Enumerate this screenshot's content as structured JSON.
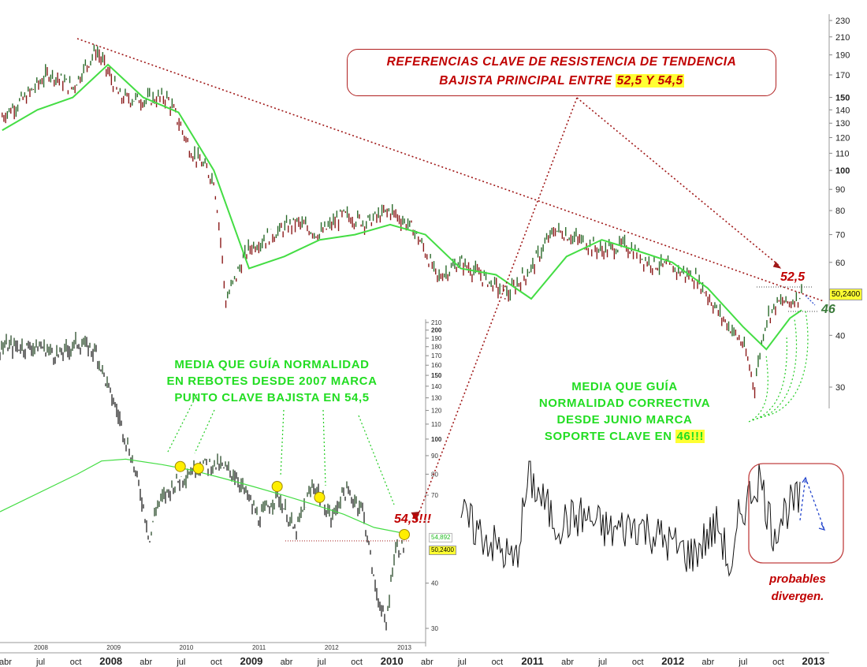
{
  "annotations": {
    "resistance_line1": "REFERENCIAS CLAVE DE RESISTENCIA DE TENDENCIA",
    "resistance_line2_prefix": "BAJISTA PRINCIPAL ENTRE ",
    "resistance_line2_highlight": "52,5 Y 54,5",
    "green_left": [
      "MEDIA QUE GUÍA NORMALIDAD",
      "EN REBOTES DESDE 2007 MARCA",
      "PUNTO CLAVE BAJISTA EN 54,5"
    ],
    "green_right": [
      "MEDIA QUE GUÍA",
      "NORMALIDAD CORRECTIVA",
      "DESDE JUNIO MARCA"
    ],
    "green_right_last_prefix": "SOPORTE CLAVE EN ",
    "green_right_last_highlight": "46!!!",
    "divergence": [
      "probables",
      "divergen."
    ],
    "level_525": "52,5",
    "level_545": "54,5!!!",
    "level_46": "46",
    "price_main": "50,2400",
    "price_inset": "50,2400",
    "price_inset_ma": "54,892"
  },
  "colors": {
    "price_up": "#2a6a2a",
    "price_down": "#8b1a1a",
    "moving_average": "#44dd44",
    "trendline": "#a01818",
    "annotation_red": "#c00000",
    "annotation_green": "#22dd22",
    "highlight": "#ffff33",
    "marker": "#ffee00",
    "divergence_arrow": "#2244cc"
  },
  "chart_data": [
    {
      "type": "line",
      "panel": "main",
      "scale": "log",
      "y_ticks": [
        230,
        210,
        190,
        170,
        150,
        140,
        130,
        120,
        110,
        100,
        90,
        80,
        70,
        60,
        40,
        30
      ],
      "y_range": [
        27,
        235
      ],
      "x_tick_labels": [
        "abr",
        "jul",
        "oct",
        "2008",
        "abr",
        "jul",
        "oct",
        "2009",
        "abr",
        "jul",
        "oct",
        "2010",
        "abr",
        "jul",
        "oct",
        "2011",
        "abr",
        "jul",
        "oct",
        "2012",
        "abr",
        "jul",
        "oct",
        "2013"
      ],
      "series": [
        {
          "key": "price",
          "x": [
            "2007-04",
            "2007-06",
            "2007-08",
            "2007-10",
            "2007-12",
            "2008-02",
            "2008-04",
            "2008-06",
            "2008-08",
            "2008-10",
            "2008-11",
            "2009-01",
            "2009-03",
            "2009-05",
            "2009-07",
            "2009-09",
            "2009-11",
            "2010-01",
            "2010-03",
            "2010-05",
            "2010-07",
            "2010-09",
            "2010-11",
            "2011-01",
            "2011-03",
            "2011-05",
            "2011-07",
            "2011-09",
            "2011-11",
            "2012-01",
            "2012-03",
            "2012-05",
            "2012-07",
            "2012-08",
            "2012-09",
            "2012-10",
            "2012-11",
            "2012-12"
          ],
          "y": [
            135,
            150,
            172,
            158,
            195,
            150,
            148,
            150,
            112,
            95,
            48,
            65,
            70,
            75,
            70,
            78,
            75,
            80,
            72,
            55,
            60,
            55,
            50,
            58,
            72,
            68,
            64,
            66,
            60,
            58,
            55,
            45,
            38,
            30,
            44,
            48,
            48,
            50.24
          ]
        },
        {
          "key": "moving_average",
          "x": [
            "2007-04",
            "2007-07",
            "2007-10",
            "2008-01",
            "2008-04",
            "2008-07",
            "2008-10",
            "2009-01",
            "2009-04",
            "2009-07",
            "2009-10",
            "2010-01",
            "2010-04",
            "2010-07",
            "2010-10",
            "2011-01",
            "2011-04",
            "2011-07",
            "2011-10",
            "2012-01",
            "2012-04",
            "2012-07",
            "2012-09",
            "2012-11",
            "2012-12"
          ],
          "y": [
            125,
            140,
            150,
            180,
            150,
            138,
            100,
            58,
            62,
            68,
            70,
            74,
            70,
            58,
            56,
            49,
            62,
            68,
            64,
            60,
            52,
            42,
            37,
            44,
            46
          ]
        },
        {
          "key": "trendline",
          "x": [
            "2007-11",
            "2012-12"
          ],
          "y": [
            210,
            52.5
          ]
        }
      ]
    },
    {
      "type": "line",
      "panel": "inset",
      "scale": "log",
      "y_ticks": [
        210,
        200,
        190,
        180,
        170,
        160,
        150,
        140,
        130,
        120,
        110,
        100,
        90,
        80,
        70,
        40,
        30
      ],
      "x_tick_labels": [
        "2008",
        "2009",
        "2010",
        "2011",
        "2012",
        "2013"
      ],
      "series": [
        {
          "key": "price",
          "x": [
            2007.0,
            2007.3,
            2007.6,
            2007.9,
            2008.1,
            2008.4,
            2008.8,
            2008.9,
            2009.2,
            2009.6,
            2009.9,
            2010.2,
            2010.6,
            2010.9,
            2011.2,
            2011.5,
            2011.8,
            2012.0,
            2012.3,
            2012.5,
            2012.7,
            2012.85,
            2013.0
          ],
          "y": [
            180,
            170,
            185,
            175,
            140,
            100,
            52,
            65,
            75,
            85,
            85,
            80,
            60,
            70,
            55,
            75,
            60,
            72,
            65,
            40,
            30,
            50,
            50.24
          ]
        },
        {
          "key": "moving_average",
          "x": [
            2007.0,
            2007.6,
            2008.0,
            2008.4,
            2009.0,
            2009.5,
            2010.0,
            2010.5,
            2011.0,
            2011.5,
            2012.0,
            2012.5,
            2013.0
          ],
          "y": [
            63,
            80,
            87,
            88,
            85,
            82,
            78,
            74,
            70,
            66,
            62,
            57,
            54.892
          ]
        }
      ],
      "markers": [
        {
          "x": 2009.3,
          "y": 84
        },
        {
          "x": 2009.6,
          "y": 83
        },
        {
          "x": 2010.9,
          "y": 74
        },
        {
          "x": 2011.6,
          "y": 69
        },
        {
          "x": 2013.0,
          "y": 54.5
        }
      ]
    },
    {
      "type": "line",
      "panel": "oscillator",
      "note_series": "oscillator",
      "x": [
        2010.5,
        2010.7,
        2010.9,
        2011.0,
        2011.2,
        2011.4,
        2011.6,
        2011.8,
        2012.0,
        2012.2,
        2012.4,
        2012.5,
        2012.55,
        2012.7,
        2012.8,
        2012.9,
        2013.0
      ],
      "y": [
        60,
        45,
        30,
        85,
        55,
        60,
        50,
        55,
        45,
        35,
        55,
        20,
        60,
        85,
        50,
        65,
        70
      ]
    }
  ]
}
